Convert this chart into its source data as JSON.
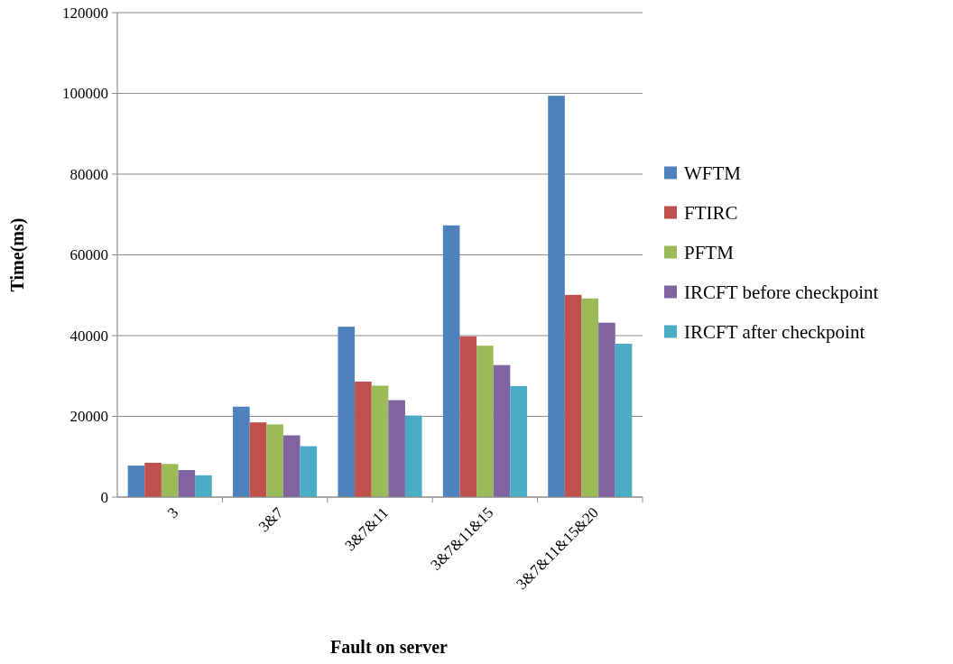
{
  "chart_data": {
    "type": "bar",
    "xlabel": "Fault on server",
    "ylabel": "Time(ms)",
    "categories": [
      "3",
      "3&7",
      "3&7&11",
      "3&7&11&15",
      "3&7&11&15&20"
    ],
    "series": [
      {
        "name": "WFTM",
        "color": "#4f81bd",
        "values": [
          7800,
          22400,
          42200,
          67300,
          99400
        ]
      },
      {
        "name": "FTIRC",
        "color": "#c0504d",
        "values": [
          8500,
          18500,
          28600,
          39800,
          50100
        ]
      },
      {
        "name": "PFTM",
        "color": "#9bbb59",
        "values": [
          8200,
          18000,
          27600,
          37500,
          49200
        ]
      },
      {
        "name": "IRCFT before checkpoint",
        "color": "#8064a2",
        "values": [
          6700,
          15300,
          24000,
          32700,
          43200
        ]
      },
      {
        "name": "IRCFT after checkpoint",
        "color": "#4bacc6",
        "values": [
          5400,
          12600,
          20200,
          27500,
          38000
        ]
      }
    ],
    "ylim": [
      0,
      120000
    ],
    "yticks": [
      0,
      20000,
      40000,
      60000,
      80000,
      100000,
      120000
    ],
    "grid": "y",
    "legend": "right"
  }
}
